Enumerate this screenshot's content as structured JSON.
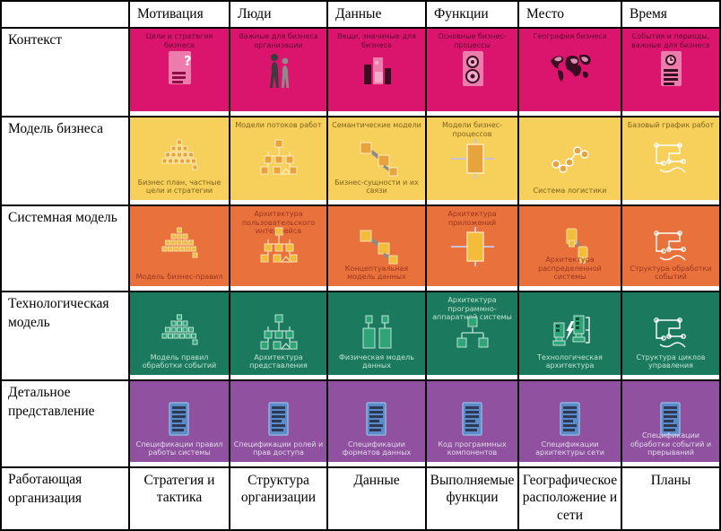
{
  "grid": {
    "col_headers": [
      "Мотивация",
      "Люди",
      "Данные",
      "Функции",
      "Место",
      "Время"
    ],
    "rows": [
      {
        "label": "Контекст",
        "color": "#DB146E",
        "text_color": "#5E0930",
        "icon_palette": {
          "box": "#EB7CAB",
          "pale": "#F3A9C9",
          "dark": "#3A0E22",
          "accent": "#8F0C47",
          "line": "#F3A9C9"
        },
        "cells": [
          {
            "caption_top": "Цели и стратегия бизнеса",
            "icon": "doc-question"
          },
          {
            "caption_top": "Важные для бизнеса организации",
            "icon": "people"
          },
          {
            "caption_top": "Вещи, значимые для бизнеса",
            "icon": "buildings"
          },
          {
            "caption_top": "Основные бизнес-процессы",
            "icon": "process-doc"
          },
          {
            "caption_top": "География бизнеса",
            "icon": "world-map"
          },
          {
            "caption_top": "События и периоды, важные для бизнеса",
            "icon": "doc-clock"
          }
        ]
      },
      {
        "label": "Модель бизнеса",
        "color": "#F7D05B",
        "text_color": "#7E611C",
        "icon_palette": {
          "box": "#E8A33D",
          "pale": "#FBECBE",
          "dark": "#8A6A1E",
          "accent": "#C07818",
          "line": "#FBECBE"
        },
        "cells": [
          {
            "caption_bottom": "Бизнес план, частные цели и стратегии",
            "icon": "pyramid"
          },
          {
            "caption_top": "Модели потоков работ",
            "icon": "org-chart"
          },
          {
            "caption_top": "Семантические модели",
            "caption_bottom": "Бизнес-сущности и их связи",
            "icon": "linked-boxes"
          },
          {
            "caption_top": "Модели бизнес-процессов",
            "icon": "cross-box"
          },
          {
            "caption_bottom": "Система логистики",
            "icon": "network"
          },
          {
            "caption_top": "Базовый график работ",
            "icon": "scribble"
          }
        ]
      },
      {
        "label": "Системная модель",
        "color": "#E8713C",
        "text_color": "#9C3520",
        "icon_palette": {
          "box": "#F2BE3A",
          "pale": "#F8DCA8",
          "dark": "#9C3520",
          "accent": "#D08A28",
          "line": "#F8DCA8"
        },
        "cells": [
          {
            "caption_bottom": "Модель бизнес-правил",
            "icon": "pyramid"
          },
          {
            "caption_top": "Архитектура пользовательского интерфейса",
            "icon": "org-chart"
          },
          {
            "caption_bottom": "Концептуальная модель данных",
            "icon": "linked-boxes"
          },
          {
            "caption_top": "Архитектура приложений",
            "icon": "cross-box"
          },
          {
            "caption_bottom": "Архитектура распределенной системы",
            "icon": "distributed"
          },
          {
            "caption_bottom": "Структура обработки событий",
            "icon": "scribble"
          }
        ]
      },
      {
        "label": "Технологическая модель",
        "color": "#1B7A5E",
        "text_color": "#BFE3D2",
        "icon_palette": {
          "box": "#2EA478",
          "pale": "#BFE3D2",
          "dark": "#0E4A38",
          "accent": "#46C294",
          "line": "#BFE3D2"
        },
        "cells": [
          {
            "caption_bottom": "Модель правил обработки событий",
            "icon": "pyramid"
          },
          {
            "caption_bottom": "Архитектура представления",
            "icon": "org-chart"
          },
          {
            "caption_bottom": "Физическая модель данных",
            "icon": "box-pairs"
          },
          {
            "caption_top": "Архитектура программно-аппаратной системы",
            "icon": "tree"
          },
          {
            "caption_bottom": "Технологическая архитектура",
            "icon": "computers"
          },
          {
            "caption_bottom": "Структура циклов управления",
            "icon": "scribble"
          }
        ]
      },
      {
        "label": "Детальное представление",
        "color": "#8F51A0",
        "text_color": "#E3D7EA",
        "icon_palette": {
          "box": "#5B8BC9",
          "pale": "#8FB3DC",
          "dark": "#2E3A55",
          "accent": "#3E6FAE",
          "line": "#8FB3DC"
        },
        "cells": [
          {
            "caption_bottom": "Спецификации правил работы системы",
            "icon": "spec-doc"
          },
          {
            "caption_bottom": "Спецификации ролей и прав доступа",
            "icon": "spec-doc"
          },
          {
            "caption_bottom": "Спецификации форматов данных",
            "icon": "spec-doc"
          },
          {
            "caption_bottom": "Код программных компонентов",
            "icon": "spec-doc"
          },
          {
            "caption_bottom": "Спецификации архитектуры сети",
            "icon": "spec-doc"
          },
          {
            "caption_bottom": "Спецификации обработки событий и прерываний",
            "icon": "spec-doc"
          }
        ]
      }
    ],
    "bottom_row": {
      "label": "Работающая организация",
      "cells": [
        "Стратегия и тактика",
        "Структура организации",
        "Данные",
        "Выполняемые функции",
        "Географическое расположение и сети",
        "Планы"
      ]
    }
  }
}
